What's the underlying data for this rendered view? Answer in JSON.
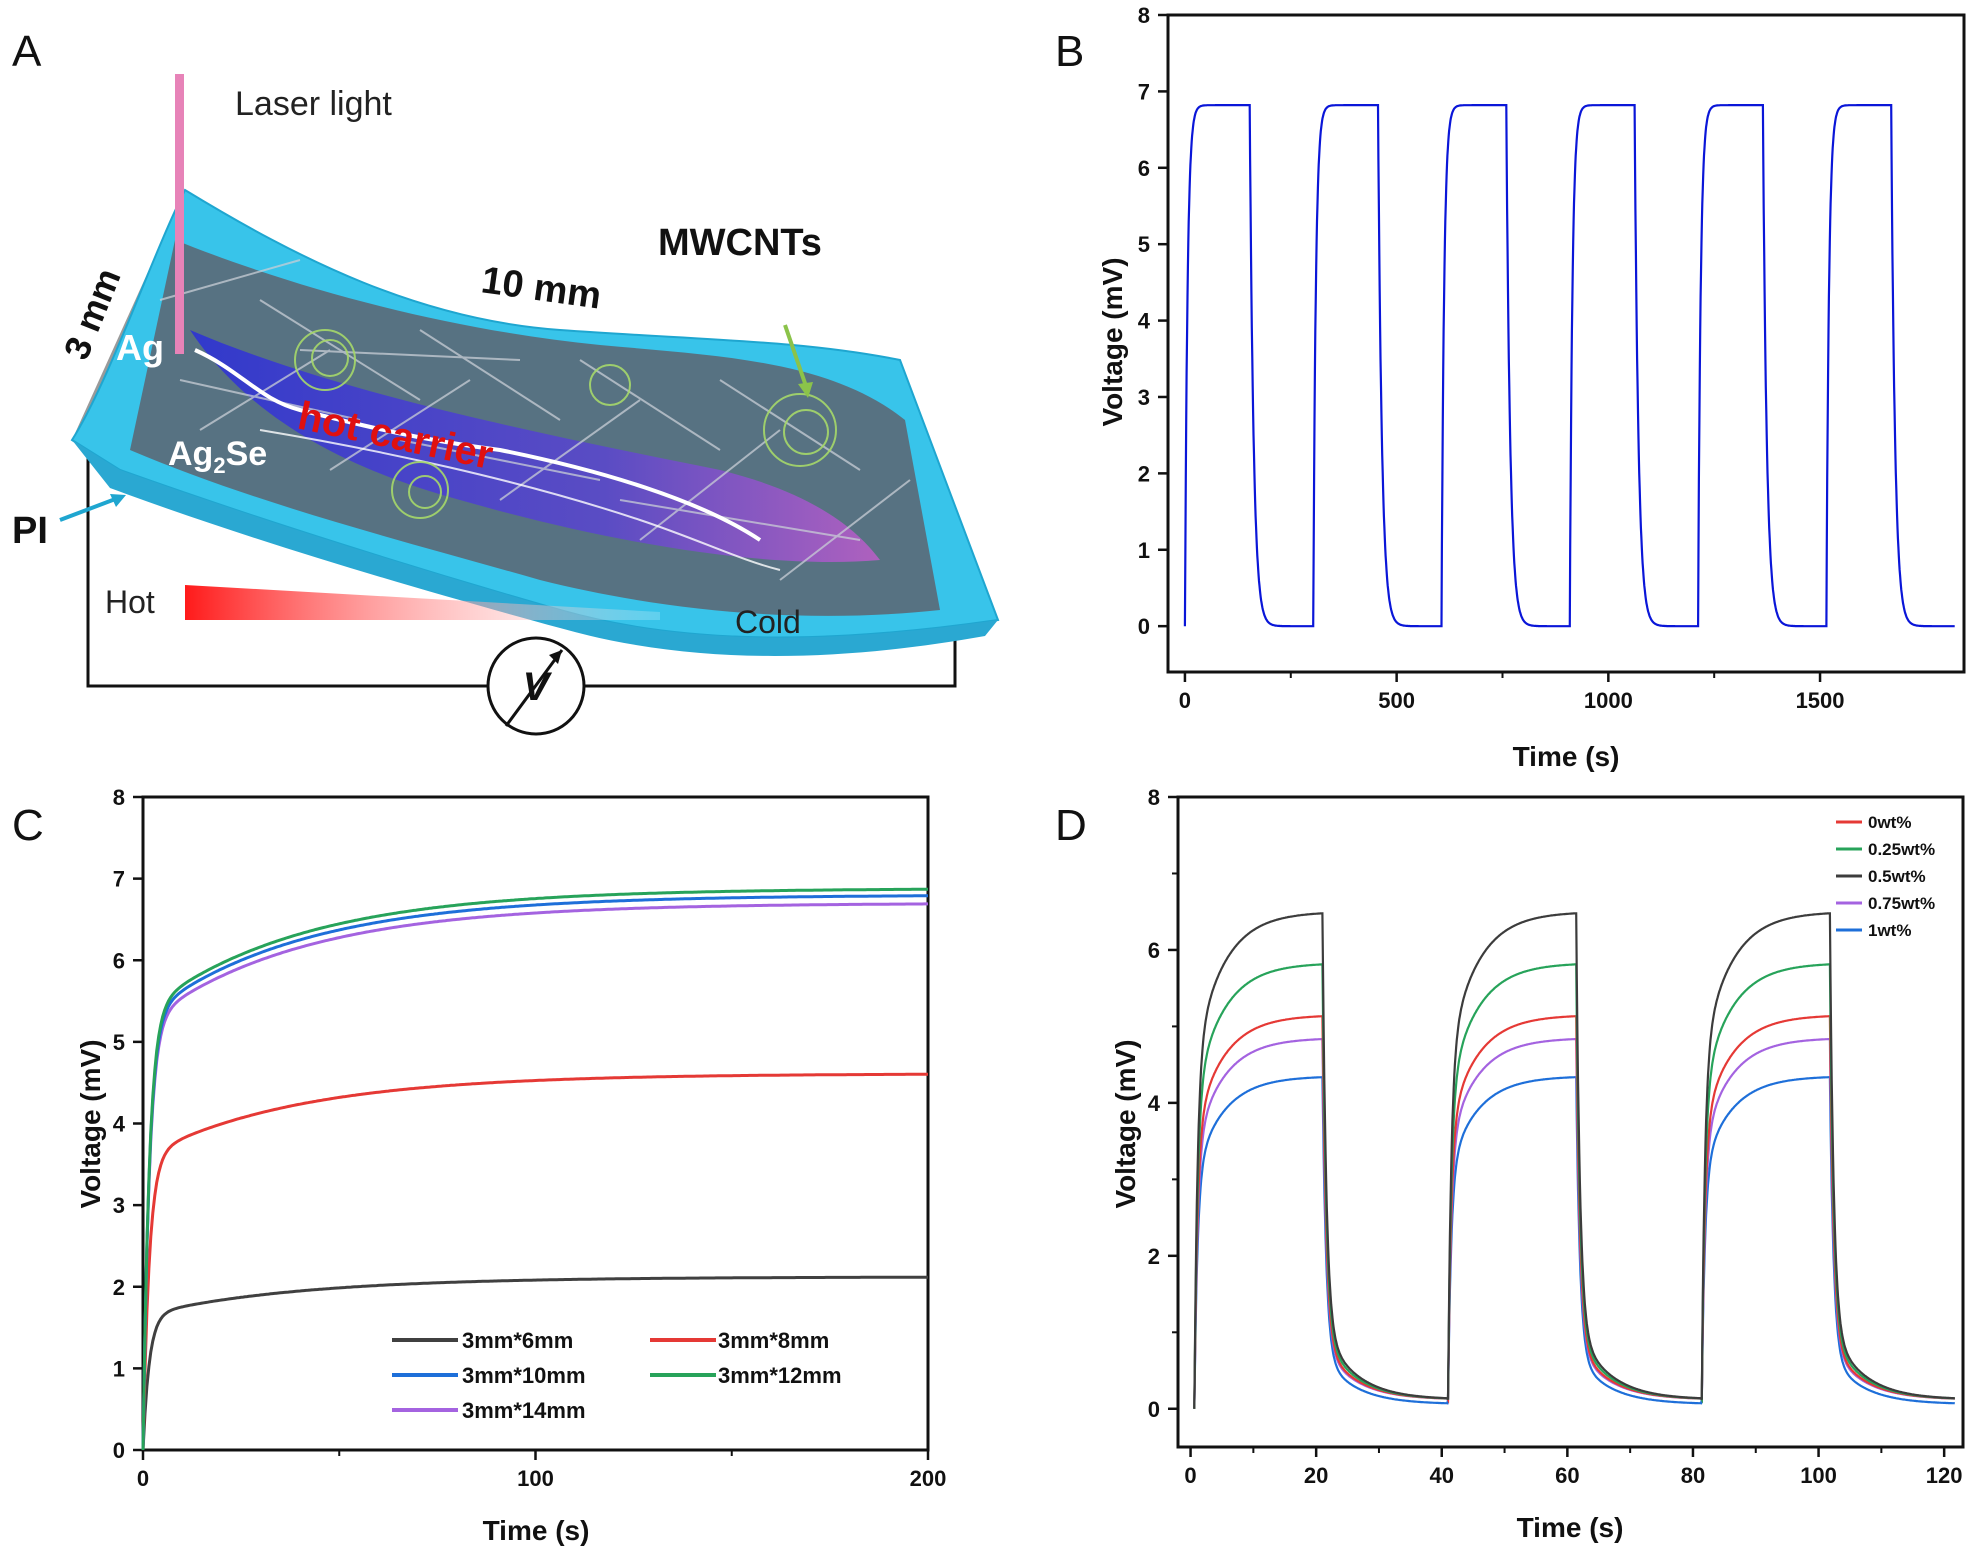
{
  "panel_letters": {
    "a": "A",
    "b": "B",
    "c": "C",
    "d": "D"
  },
  "schematic": {
    "laser_label": "Laser light",
    "width_label": "3 mm",
    "length_label": "10 mm",
    "ag_label": "Ag",
    "ag2se_label": "Ag",
    "ag2se_sub": "2",
    "ag2se_tail": "Se",
    "mwcnt_label": "MWCNTs",
    "carrier_label": "hot carrier",
    "pi_label": "PI",
    "hot_label": "Hot",
    "cold_label": "Cold",
    "meter_label": "V",
    "colors": {
      "film": "#38c4ea",
      "carrier": "#e01010",
      "mwcnt": "#8bc34a",
      "gradient_hot": "#ff1a1a"
    }
  },
  "chart_data": [
    {
      "panel": "B",
      "type": "line",
      "xlabel": "Time (s)",
      "ylabel": "Voltage (mV)",
      "xlim": [
        -40,
        1840
      ],
      "ylim": [
        -0.6,
        8
      ],
      "xticks": [
        0,
        500,
        1000,
        1500
      ],
      "yticks": [
        0,
        1,
        2,
        3,
        4,
        5,
        6,
        7,
        8
      ],
      "cycle": {
        "period_s": 303,
        "on_s": 153,
        "cycles": 6,
        "v_on_mV": 6.82,
        "v_off_mV": 0.0
      },
      "series": [
        {
          "color": "#0a16d8"
        }
      ]
    },
    {
      "panel": "C",
      "type": "line",
      "xlabel": "Time (s)",
      "ylabel": "Voltage (mV)",
      "xlim": [
        0,
        200
      ],
      "ylim": [
        0,
        8
      ],
      "xticks": [
        0,
        100,
        200
      ],
      "yticks": [
        0,
        1,
        2,
        3,
        4,
        5,
        6,
        7,
        8
      ],
      "legend_position": "bottom-right",
      "series": [
        {
          "name": "3mm*6mm",
          "color": "#404040",
          "plateau_mV": 2.12
        },
        {
          "name": "3mm*8mm",
          "color": "#e53935",
          "plateau_mV": 4.61
        },
        {
          "name": "3mm*10mm",
          "color": "#1e6fd9",
          "plateau_mV": 6.8
        },
        {
          "name": "3mm*12mm",
          "color": "#27a35a",
          "plateau_mV": 6.88
        },
        {
          "name": "3mm*14mm",
          "color": "#a463e0",
          "plateau_mV": 6.7
        }
      ]
    },
    {
      "panel": "D",
      "type": "line",
      "xlabel": "Time (s)",
      "ylabel": "Voltage (mV)",
      "xlim": [
        -2,
        123
      ],
      "ylim": [
        -0.5,
        8
      ],
      "xticks": [
        0,
        20,
        40,
        60,
        80,
        100,
        120
      ],
      "yticks": [
        0,
        2,
        4,
        6,
        8
      ],
      "cycle": {
        "period_s": 40.4,
        "on_s": 20.4,
        "cycles": 3
      },
      "legend_position": "top-right",
      "series": [
        {
          "name": "0wt%",
          "color": "#e53935",
          "plateau_mV": 5.15
        },
        {
          "name": "0.25wt%",
          "color": "#27a35a",
          "plateau_mV": 5.83
        },
        {
          "name": "0.5wt%",
          "color": "#3c3c3c",
          "plateau_mV": 6.5
        },
        {
          "name": "0.75wt%",
          "color": "#a463e0",
          "plateau_mV": 4.85
        },
        {
          "name": "1wt%",
          "color": "#1e6fd9",
          "plateau_mV": 4.35
        }
      ]
    }
  ]
}
